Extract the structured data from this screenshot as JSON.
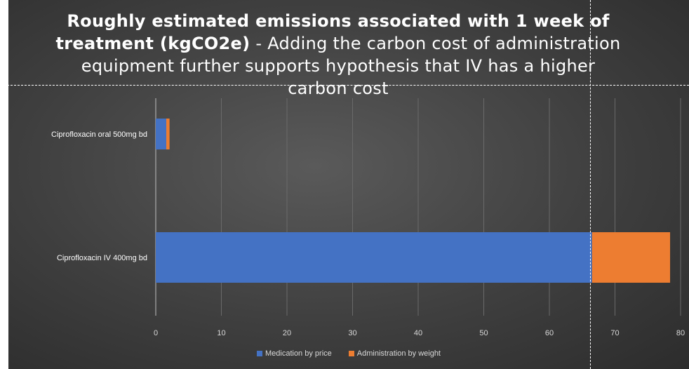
{
  "title": {
    "bold": "Roughly estimated emissions associated with 1 week of treatment (kgCO2e)",
    "normal": " - Adding the carbon cost of administration equipment further supports hypothesis that IV has a higher carbon cost"
  },
  "colors": {
    "medication": "#4472c4",
    "administration": "#ed7d31",
    "guide_lines": "#ffffff"
  },
  "chart_data": {
    "type": "bar",
    "orientation": "horizontal",
    "stacked": true,
    "categories": [
      "Ciprofloxacin oral 500mg bd",
      "Ciprofloxacin IV 400mg bd"
    ],
    "series": [
      {
        "name": "Medication by price",
        "values": [
          1.6,
          66.5
        ]
      },
      {
        "name": "Administration by weight",
        "values": [
          0.5,
          11.9
        ]
      }
    ],
    "x_ticks": [
      "0",
      "10",
      "20",
      "30",
      "40",
      "50",
      "60",
      "70",
      "80"
    ],
    "xlim": [
      0,
      80
    ],
    "grid": true,
    "legend_position": "bottom"
  }
}
